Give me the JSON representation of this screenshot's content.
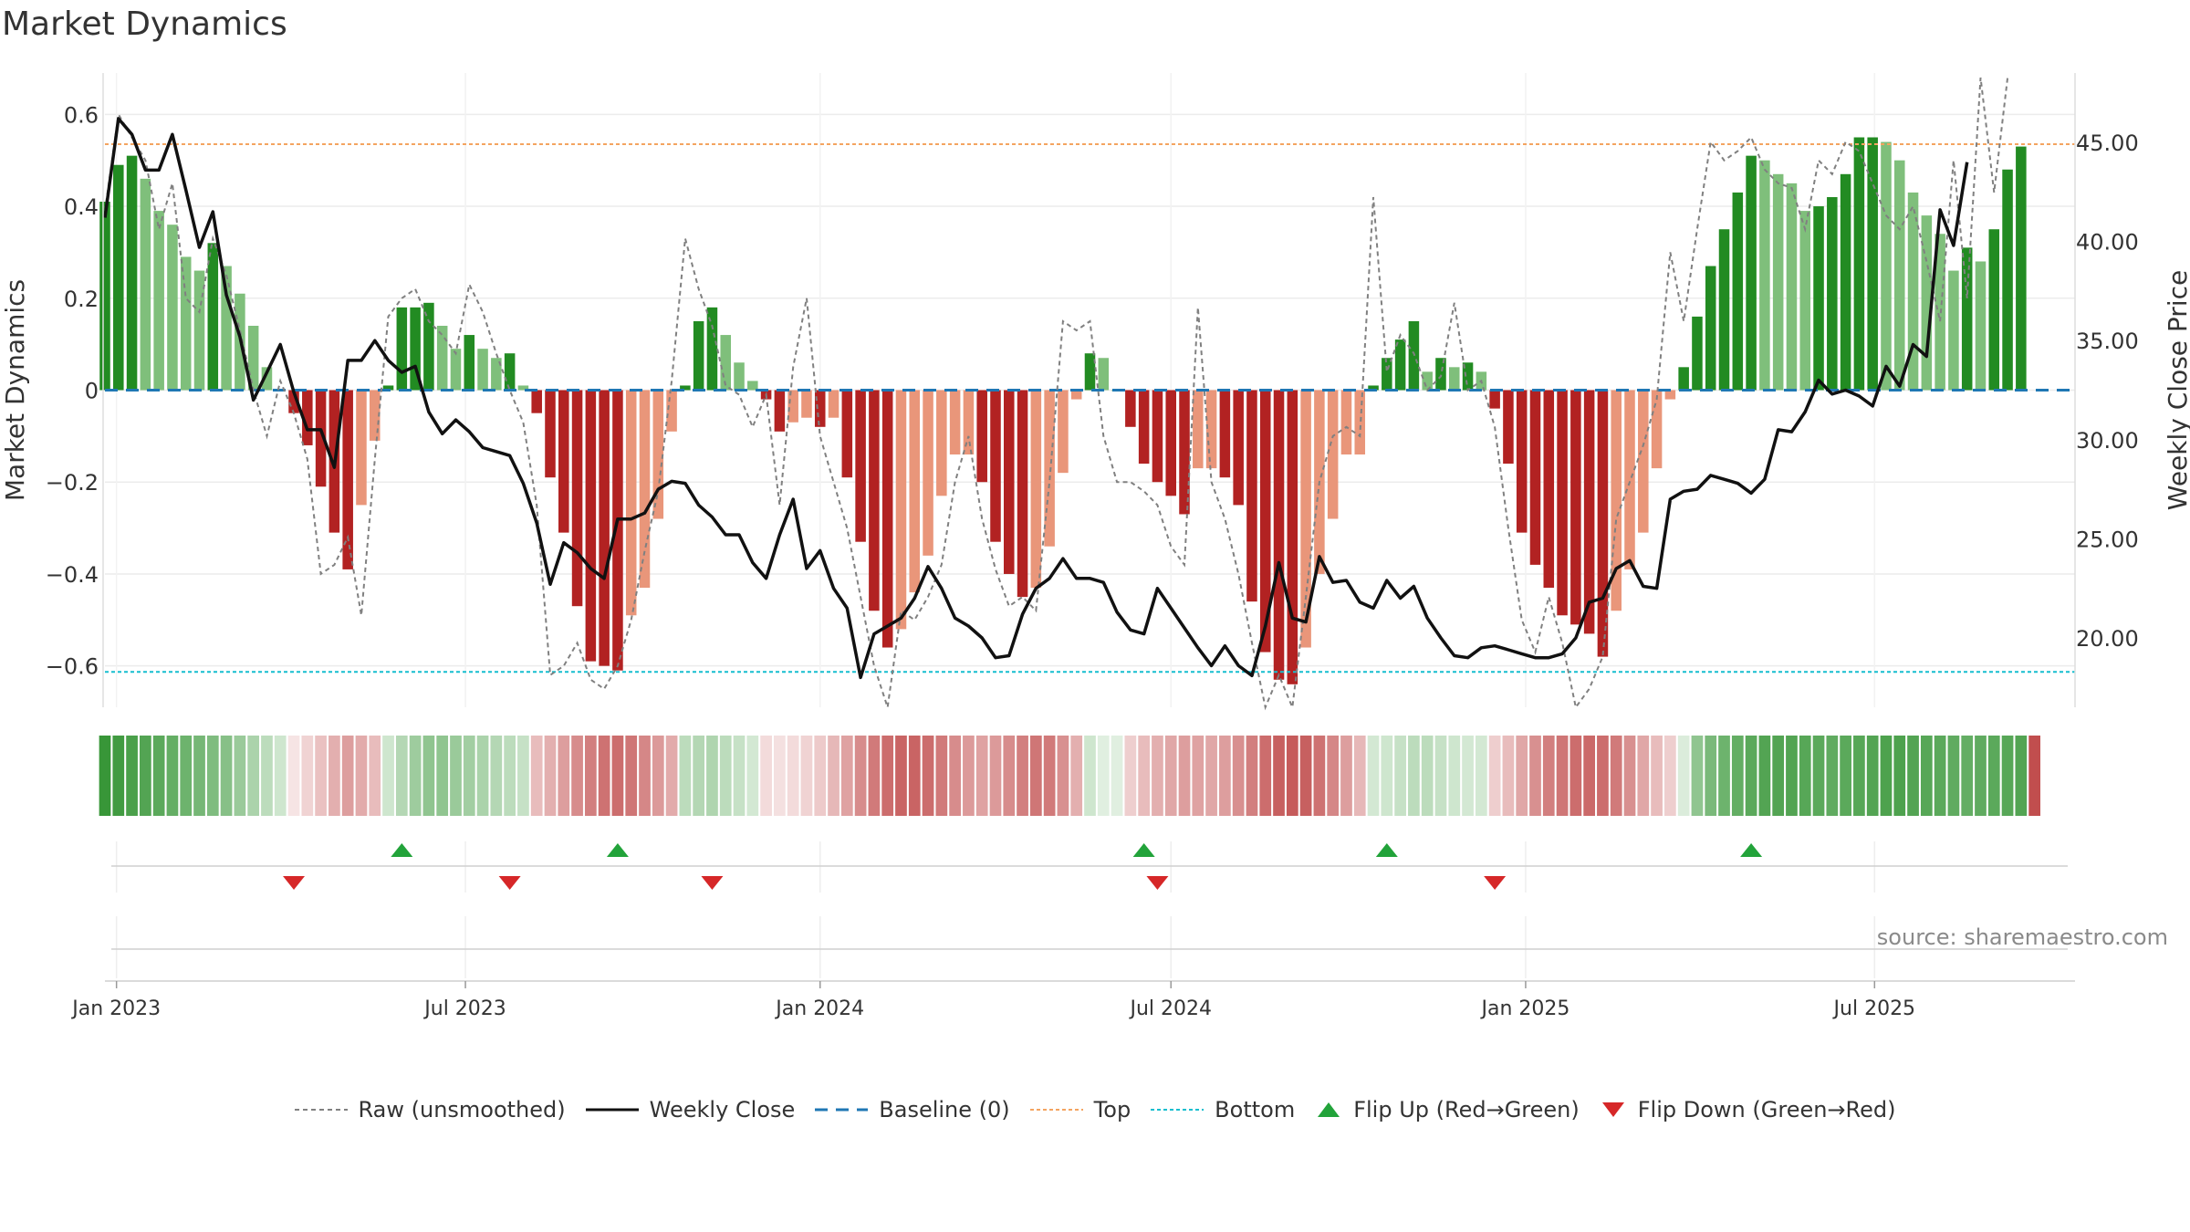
{
  "title": "Market Dynamics",
  "source_label": "source: sharemaestro.com",
  "legend": [
    {
      "label": "Raw (unsmoothed)",
      "icon": "dashed-gray-line"
    },
    {
      "label": "Weekly Close",
      "icon": "solid-black-line"
    },
    {
      "label": "Baseline (0)",
      "icon": "dashed-blue-line"
    },
    {
      "label": "Top",
      "icon": "dotted-orange-line"
    },
    {
      "label": "Bottom",
      "icon": "dotted-cyan-line"
    },
    {
      "label": "Flip Up (Red→Green)",
      "icon": "green-up-triangle"
    },
    {
      "label": "Flip Down (Green→Red)",
      "icon": "red-down-triangle"
    }
  ],
  "colors": {
    "strong_green": "#228b22",
    "light_green": "#7fbf7b",
    "strong_red": "#b22222",
    "light_red": "#e9967a",
    "raw": "#808080",
    "close": "#111111",
    "baseline": "#1f77b4",
    "top": "#f4a460",
    "bottom": "#17becf"
  },
  "chart_data": {
    "type": "bar",
    "ylabel": "Market Dynamics",
    "y2label": "Weekly Close Price",
    "ylim": [
      -0.69,
      0.69
    ],
    "y2lim": [
      16.5,
      48.5
    ],
    "yticks": [
      -0.6,
      -0.4,
      -0.2,
      0,
      0.2,
      0.4,
      0.6
    ],
    "ytick_labels": [
      "−0.6",
      "−0.4",
      "−0.2",
      "0",
      "0.2",
      "0.4",
      "0.6"
    ],
    "y2ticks": [
      20,
      25,
      30,
      35,
      40,
      45
    ],
    "y2tick_labels": [
      "20.00",
      "25.00",
      "30.00",
      "35.00",
      "40.00",
      "45.00"
    ],
    "xticks": [
      "2023-01-01",
      "2023-07-01",
      "2024-01-01",
      "2024-07-01",
      "2025-01-01",
      "2025-07-01"
    ],
    "xtick_labels": [
      "Jan 2023",
      "Jul 2023",
      "Jan 2024",
      "Jul 2024",
      "Jan 2025",
      "Jul 2025"
    ],
    "x_start": "2022-12-26",
    "x_end": "2025-10-13",
    "series_start": "2022-12-26",
    "top_line": 0.535,
    "bottom_line": -0.613,
    "grid": true,
    "smoothed": [
      0.41,
      0.49,
      0.51,
      0.46,
      0.39,
      0.36,
      0.29,
      0.26,
      0.32,
      0.27,
      0.21,
      0.14,
      0.05,
      0.0,
      -0.05,
      -0.12,
      -0.21,
      -0.31,
      -0.39,
      -0.25,
      -0.11,
      0.01,
      0.18,
      0.18,
      0.19,
      0.14,
      0.09,
      0.12,
      0.09,
      0.07,
      0.08,
      0.01,
      -0.05,
      -0.19,
      -0.31,
      -0.47,
      -0.59,
      -0.6,
      -0.61,
      -0.49,
      -0.43,
      -0.28,
      -0.09,
      0.01,
      0.15,
      0.18,
      0.12,
      0.06,
      0.02,
      -0.02,
      -0.09,
      -0.07,
      -0.06,
      -0.08,
      -0.06,
      -0.19,
      -0.33,
      -0.48,
      -0.56,
      -0.52,
      -0.44,
      -0.36,
      -0.23,
      -0.14,
      -0.14,
      -0.2,
      -0.33,
      -0.4,
      -0.45,
      -0.43,
      -0.34,
      -0.18,
      -0.02,
      0.08,
      0.07,
      0.0,
      -0.08,
      -0.16,
      -0.2,
      -0.23,
      -0.27,
      -0.17,
      -0.17,
      -0.19,
      -0.25,
      -0.46,
      -0.57,
      -0.63,
      -0.64,
      -0.56,
      -0.4,
      -0.28,
      -0.14,
      -0.14,
      0.01,
      0.07,
      0.11,
      0.15,
      0.04,
      0.07,
      0.05,
      0.06,
      0.04,
      -0.04,
      -0.16,
      -0.31,
      -0.38,
      -0.43,
      -0.49,
      -0.51,
      -0.53,
      -0.58,
      -0.48,
      -0.39,
      -0.31,
      -0.17,
      -0.02,
      0.05,
      0.16,
      0.27,
      0.35,
      0.43,
      0.51,
      0.5,
      0.47,
      0.45,
      0.39,
      0.4,
      0.42,
      0.47,
      0.55,
      0.55,
      0.54,
      0.5,
      0.43,
      0.38,
      0.34,
      0.26,
      0.31,
      0.28,
      0.35,
      0.48,
      0.53
    ],
    "raw": [
      0.39,
      0.6,
      0.55,
      0.5,
      0.35,
      0.45,
      0.2,
      0.17,
      0.33,
      0.25,
      0.13,
      0.0,
      -0.1,
      0.02,
      -0.05,
      -0.15,
      -0.4,
      -0.38,
      -0.32,
      -0.49,
      -0.15,
      0.16,
      0.2,
      0.22,
      0.15,
      0.12,
      0.08,
      0.23,
      0.17,
      0.08,
      0.0,
      -0.07,
      -0.25,
      -0.62,
      -0.6,
      -0.55,
      -0.63,
      -0.65,
      -0.6,
      -0.5,
      -0.35,
      -0.22,
      0.02,
      0.33,
      0.22,
      0.14,
      0.01,
      -0.01,
      -0.08,
      -0.01,
      -0.25,
      0.05,
      0.2,
      -0.1,
      -0.2,
      -0.3,
      -0.45,
      -0.6,
      -0.72,
      -0.48,
      -0.5,
      -0.45,
      -0.38,
      -0.2,
      -0.1,
      -0.28,
      -0.39,
      -0.47,
      -0.45,
      -0.48,
      -0.2,
      0.15,
      0.13,
      0.15,
      -0.1,
      -0.2,
      -0.2,
      -0.22,
      -0.25,
      -0.34,
      -0.38,
      0.18,
      -0.2,
      -0.28,
      -0.4,
      -0.55,
      -0.7,
      -0.62,
      -0.7,
      -0.45,
      -0.2,
      -0.1,
      -0.08,
      -0.1,
      0.42,
      0.04,
      0.12,
      0.08,
      0.0,
      0.03,
      0.19,
      0.0,
      0.02,
      -0.08,
      -0.3,
      -0.5,
      -0.57,
      -0.45,
      -0.55,
      -0.7,
      -0.65,
      -0.58,
      -0.28,
      -0.2,
      -0.12,
      -0.02,
      0.3,
      0.15,
      0.35,
      0.54,
      0.5,
      0.52,
      0.55,
      0.48,
      0.45,
      0.44,
      0.35,
      0.5,
      0.47,
      0.54,
      0.52,
      0.45,
      0.38,
      0.35,
      0.4,
      0.28,
      0.15,
      0.5,
      0.2,
      0.68,
      0.43,
      0.68
    ],
    "close": [
      41.2,
      46.2,
      45.4,
      43.6,
      43.6,
      45.4,
      42.6,
      39.7,
      41.5,
      37.3,
      35.2,
      32.0,
      33.4,
      34.8,
      32.4,
      30.5,
      30.5,
      28.6,
      34.0,
      34.0,
      35.0,
      34.0,
      33.4,
      33.7,
      31.4,
      30.3,
      31.0,
      30.4,
      29.6,
      29.4,
      29.2,
      27.8,
      25.8,
      22.7,
      24.8,
      24.3,
      23.5,
      23.0,
      26.0,
      26.0,
      26.3,
      27.5,
      27.9,
      27.8,
      26.7,
      26.1,
      25.2,
      25.2,
      23.8,
      23.0,
      25.2,
      27.0,
      23.5,
      24.4,
      22.5,
      21.5,
      18.0,
      20.2,
      20.6,
      21.0,
      22.0,
      23.6,
      22.5,
      21.0,
      20.6,
      20.0,
      19.0,
      19.1,
      21.2,
      22.5,
      23.0,
      24.0,
      23.0,
      23.0,
      22.8,
      21.3,
      20.4,
      20.2,
      22.5,
      21.5,
      20.5,
      19.5,
      18.6,
      19.6,
      18.6,
      18.1,
      20.6,
      23.8,
      21.0,
      20.8,
      24.1,
      22.8,
      22.9,
      21.8,
      21.5,
      22.9,
      22.0,
      22.6,
      21.0,
      20.0,
      19.1,
      19.0,
      19.5,
      19.6,
      19.4,
      19.2,
      19.0,
      19.0,
      19.2,
      20.0,
      21.8,
      22.0,
      23.5,
      23.9,
      22.6,
      22.5,
      27.0,
      27.4,
      27.5,
      28.2,
      28.0,
      27.8,
      27.3,
      28.0,
      30.5,
      30.4,
      31.4,
      33.0,
      32.3,
      32.5,
      32.2,
      31.7,
      33.7,
      32.7,
      34.8,
      34.2,
      41.6,
      39.8,
      44.0
    ],
    "strength_band": [
      0.9,
      0.86,
      0.82,
      0.78,
      0.74,
      0.7,
      0.66,
      0.62,
      0.58,
      0.54,
      0.46,
      0.38,
      0.3,
      0.22,
      0.12,
      0.2,
      0.28,
      0.36,
      0.44,
      0.38,
      0.3,
      0.22,
      0.34,
      0.44,
      0.5,
      0.5,
      0.46,
      0.42,
      0.38,
      0.34,
      0.3,
      0.26,
      0.3,
      0.36,
      0.44,
      0.52,
      0.58,
      0.64,
      0.66,
      0.62,
      0.54,
      0.46,
      0.38,
      0.3,
      0.34,
      0.36,
      0.3,
      0.26,
      0.2,
      0.16,
      0.14,
      0.16,
      0.2,
      0.24,
      0.32,
      0.42,
      0.52,
      0.6,
      0.66,
      0.7,
      0.7,
      0.66,
      0.6,
      0.52,
      0.46,
      0.42,
      0.46,
      0.52,
      0.58,
      0.62,
      0.6,
      0.5,
      0.36,
      0.22,
      0.14,
      0.14,
      0.22,
      0.3,
      0.36,
      0.4,
      0.44,
      0.42,
      0.4,
      0.44,
      0.5,
      0.58,
      0.66,
      0.72,
      0.74,
      0.72,
      0.64,
      0.54,
      0.44,
      0.32,
      0.2,
      0.22,
      0.26,
      0.3,
      0.3,
      0.26,
      0.22,
      0.2,
      0.2,
      0.22,
      0.3,
      0.4,
      0.5,
      0.58,
      0.62,
      0.66,
      0.68,
      0.66,
      0.6,
      0.5,
      0.4,
      0.3,
      0.22,
      0.16,
      0.5,
      0.6,
      0.66,
      0.7,
      0.74,
      0.78,
      0.78,
      0.78,
      0.76,
      0.74,
      0.72,
      0.74,
      0.76,
      0.78,
      0.8,
      0.8,
      0.78,
      0.76,
      0.74,
      0.72,
      0.7,
      0.72,
      0.74,
      0.76,
      0.78,
      0.8
    ],
    "flip_up_weeks": [
      "2023-05-29",
      "2023-09-18",
      "2024-06-17",
      "2024-10-21",
      "2025-04-28"
    ],
    "flip_down_weeks": [
      "2023-04-03",
      "2023-07-24",
      "2023-11-06",
      "2024-06-24",
      "2024-12-16"
    ]
  }
}
